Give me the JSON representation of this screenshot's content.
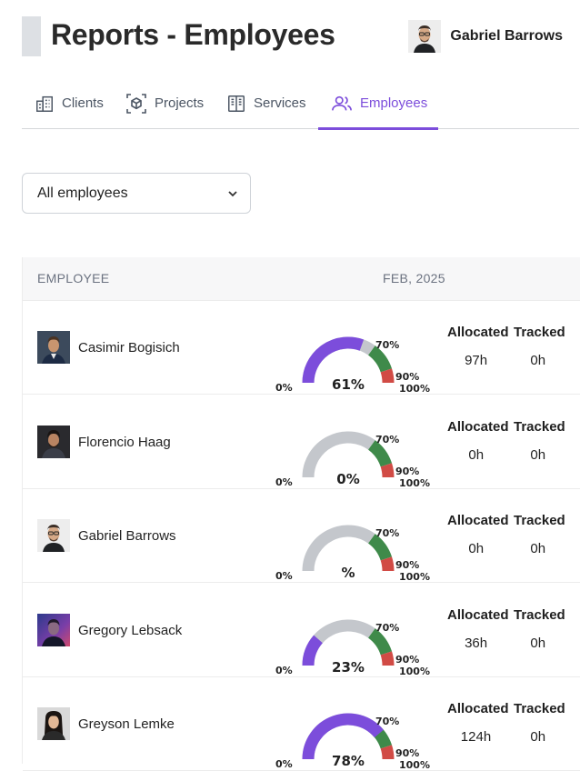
{
  "header": {
    "title": "Reports - Employees",
    "user_name": "Gabriel Barrows"
  },
  "tabs": [
    {
      "label": "Clients",
      "icon": "building-icon"
    },
    {
      "label": "Projects",
      "icon": "cube-icon"
    },
    {
      "label": "Services",
      "icon": "book-icon"
    },
    {
      "label": "Employees",
      "icon": "users-icon",
      "active": true
    }
  ],
  "filter": {
    "selected": "All employees"
  },
  "table": {
    "col_employee": "EMPLOYEE",
    "col_period": "FEB, 2025",
    "label_allocated": "Allocated",
    "label_tracked": "Tracked",
    "gauge_labels": {
      "min": "0%",
      "mid": "70%",
      "high": "90%",
      "max": "100%"
    },
    "rows": [
      {
        "name": "Casimir Bogisich",
        "pct_text": "61%",
        "fill": 0.61,
        "allocated": "97h",
        "tracked": "0h"
      },
      {
        "name": "Florencio Haag",
        "pct_text": "0%",
        "fill": 0,
        "allocated": "0h",
        "tracked": "0h"
      },
      {
        "name": "Gabriel Barrows",
        "pct_text": "%",
        "fill": 0,
        "allocated": "0h",
        "tracked": "0h"
      },
      {
        "name": "Gregory Lebsack",
        "pct_text": "23%",
        "fill": 0.23,
        "allocated": "36h",
        "tracked": "0h"
      },
      {
        "name": "Greyson Lemke",
        "pct_text": "78%",
        "fill": 0.78,
        "allocated": "124h",
        "tracked": "0h"
      }
    ]
  },
  "colors": {
    "accent": "#7c4ddb",
    "gauge_base": "#c4c7cc",
    "gauge_green": "#3f8a4a",
    "gauge_red": "#d14b45"
  }
}
